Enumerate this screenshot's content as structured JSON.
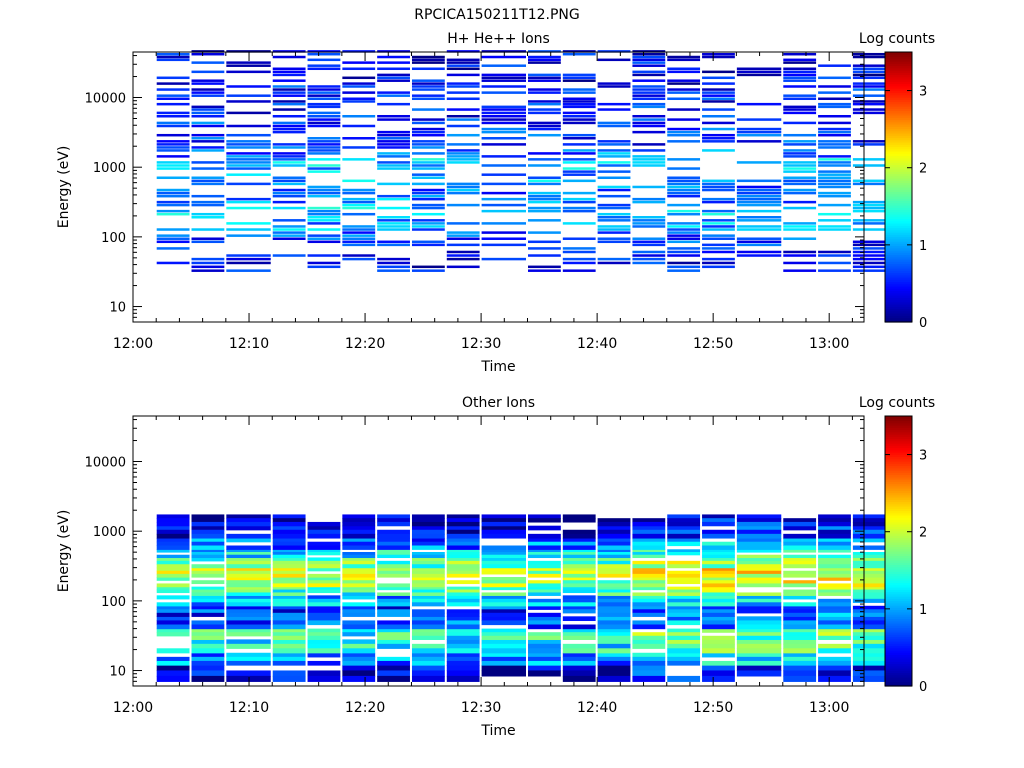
{
  "figure_title": "RPCICA150211T12.PNG",
  "chart_data": [
    {
      "type": "heatmap",
      "title": "H+ He++ Ions",
      "xlabel": "Time",
      "ylabel": "Energy (eV)",
      "x_ticks": [
        "12:00",
        "12:10",
        "12:20",
        "12:30",
        "12:40",
        "12:50",
        "13:00"
      ],
      "xlim": [
        "12:00",
        "13:03"
      ],
      "y_scale": "log",
      "y_ticks": [
        10,
        100,
        1000,
        10000
      ],
      "y_tick_labels": [
        "10",
        "100",
        "1000",
        "10000"
      ],
      "ylim": [
        6,
        45000
      ],
      "colorbar": {
        "label": "Log counts",
        "range": [
          0,
          3.5
        ],
        "ticks": [
          "0",
          "1",
          "2",
          "3"
        ]
      },
      "scan_start_times": [
        "12:02",
        "12:05",
        "12:08",
        "12:12",
        "12:15",
        "12:18",
        "12:21",
        "12:24",
        "12:27",
        "12:30",
        "12:34",
        "12:37",
        "12:40",
        "12:43",
        "12:46",
        "12:49",
        "12:52",
        "12:56",
        "12:59",
        "13:02"
      ],
      "energy_profile": {
        "energies_eV": [
          30,
          50,
          80,
          120,
          180,
          270,
          400,
          600,
          900,
          1350,
          2000,
          3000,
          4500,
          7000,
          10000,
          15000,
          22000,
          33000
        ],
        "typical_log_counts": [
          0.4,
          0.5,
          0.7,
          1.0,
          1.1,
          0.9,
          0.8,
          1.0,
          1.1,
          0.8,
          0.6,
          0.6,
          0.5,
          0.5,
          0.5,
          0.4,
          0.4,
          0.4
        ]
      }
    },
    {
      "type": "heatmap",
      "title": "Other Ions",
      "xlabel": "Time",
      "ylabel": "Energy (eV)",
      "x_ticks": [
        "12:00",
        "12:10",
        "12:20",
        "12:30",
        "12:40",
        "12:50",
        "13:00"
      ],
      "xlim": [
        "12:00",
        "13:03"
      ],
      "y_scale": "log",
      "y_ticks": [
        10,
        100,
        1000,
        10000
      ],
      "y_tick_labels": [
        "10",
        "100",
        "1000",
        "10000"
      ],
      "ylim": [
        6,
        45000
      ],
      "colorbar": {
        "label": "Log counts",
        "range": [
          0,
          3.5
        ],
        "ticks": [
          "0",
          "1",
          "2",
          "3"
        ]
      },
      "scan_start_times": [
        "12:02",
        "12:05",
        "12:08",
        "12:12",
        "12:15",
        "12:18",
        "12:21",
        "12:24",
        "12:27",
        "12:30",
        "12:34",
        "12:37",
        "12:40",
        "12:43",
        "12:46",
        "12:49",
        "12:52",
        "12:56",
        "12:59",
        "13:02"
      ],
      "energy_profile": {
        "energies_eV": [
          7,
          12,
          18,
          28,
          40,
          60,
          85,
          120,
          160,
          220,
          300,
          420,
          550,
          800,
          1200
        ],
        "typical_log_counts": [
          0.3,
          0.9,
          1.3,
          1.4,
          0.7,
          0.6,
          1.0,
          1.5,
          1.8,
          1.9,
          1.6,
          1.2,
          0.8,
          0.3,
          0.2
        ]
      }
    }
  ]
}
